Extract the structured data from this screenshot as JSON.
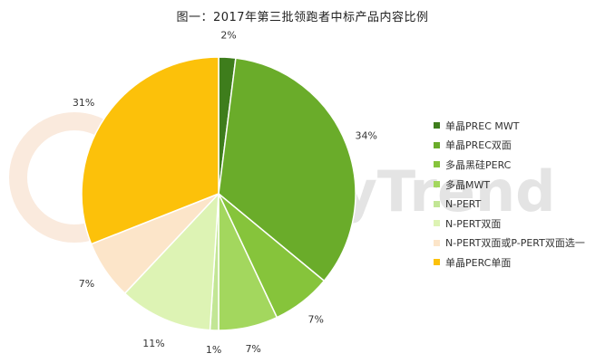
{
  "chart_data": {
    "type": "pie",
    "title": "图一：2017年第三批领跑者中标产品内容比例",
    "categories": [
      "单晶PREC MWT",
      "单晶PREC双面",
      "多晶黑硅PERC",
      "多晶MWT",
      "N-PERT",
      "N-PERT双面",
      "N-PERT双面或P-PERT双面选一",
      "单晶PERC单面"
    ],
    "values": [
      2,
      34,
      7,
      7,
      1,
      11,
      7,
      31
    ],
    "value_labels": [
      "2%",
      "34%",
      "7%",
      "7%",
      "1%",
      "11%",
      "7%",
      "31%"
    ],
    "colors": [
      "#3e7d1c",
      "#6aac2a",
      "#86c43b",
      "#a3d75e",
      "#c2e695",
      "#ddf3b4",
      "#fce5c9",
      "#fcc10a"
    ],
    "legend_position": "right"
  },
  "watermark": {
    "text": "EnergyTrend"
  }
}
